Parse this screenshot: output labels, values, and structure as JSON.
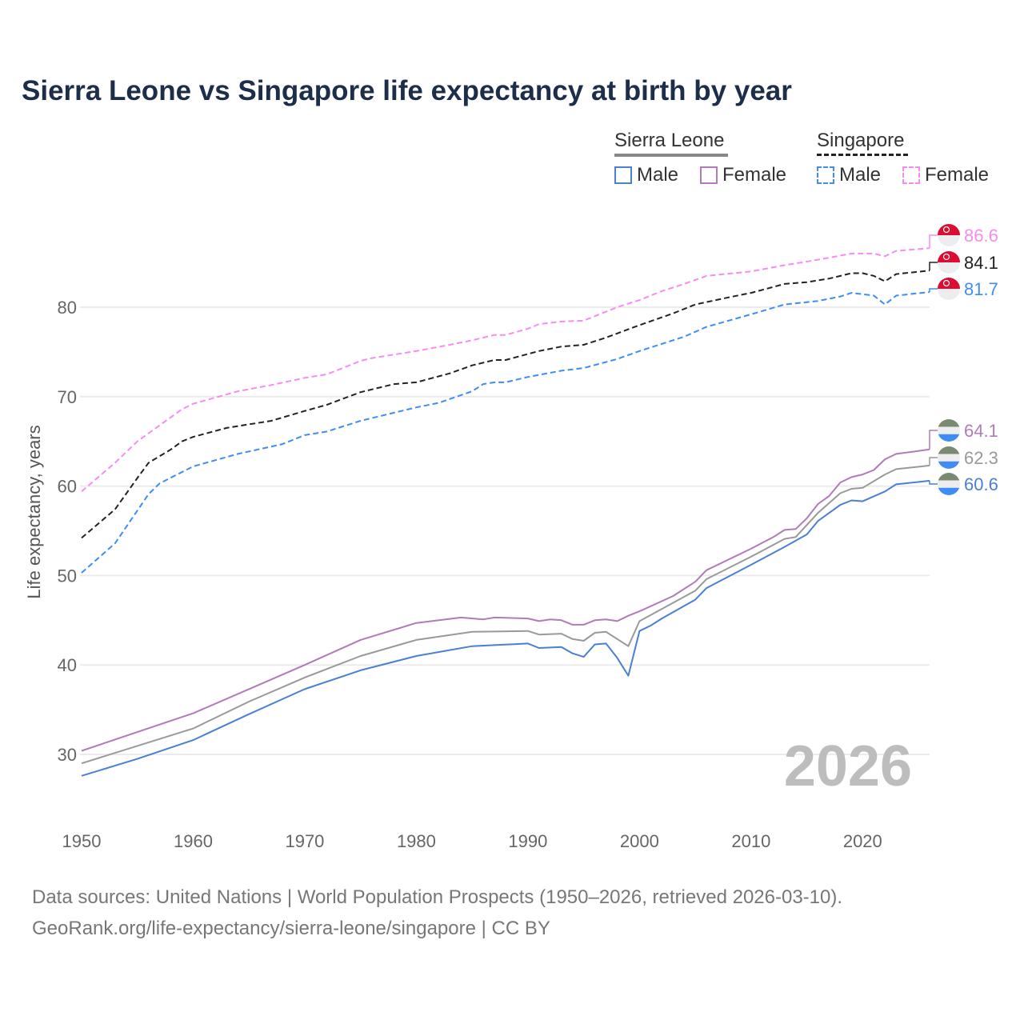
{
  "chart_data": {
    "type": "line",
    "title": "Sierra Leone vs Singapore life expectancy at birth by year",
    "xlabel": "",
    "ylabel": "Life expectancy, years",
    "xlim": [
      1950,
      2026
    ],
    "ylim": [
      25,
      90
    ],
    "x_ticks": [
      "1950",
      "1960",
      "1970",
      "1980",
      "1990",
      "2000",
      "2010",
      "2020"
    ],
    "y_ticks": [
      "30",
      "40",
      "50",
      "60",
      "70",
      "80"
    ],
    "grid": true,
    "watermark_year": "2026",
    "legend": {
      "groups": [
        {
          "name": "Sierra Leone",
          "items": [
            "Male",
            "Female"
          ]
        },
        {
          "name": "Singapore",
          "items": [
            "Male",
            "Female"
          ]
        }
      ],
      "placement": "top-right"
    },
    "series": [
      {
        "name": "Singapore Female",
        "country": "Singapore",
        "color": "#f78cf0",
        "dashed": true,
        "end_label": "86.6",
        "points": [
          [
            1950,
            59.4
          ],
          [
            1953,
            62.6
          ],
          [
            1955,
            65.0
          ],
          [
            1959,
            68.6
          ],
          [
            1960,
            69.2
          ],
          [
            1964,
            70.6
          ],
          [
            1967,
            71.3
          ],
          [
            1970,
            72.1
          ],
          [
            1972,
            72.5
          ],
          [
            1975,
            74.0
          ],
          [
            1976,
            74.3
          ],
          [
            1980,
            75.1
          ],
          [
            1983,
            75.8
          ],
          [
            1985,
            76.3
          ],
          [
            1987,
            76.9
          ],
          [
            1988,
            76.9
          ],
          [
            1990,
            77.6
          ],
          [
            1991,
            78.1
          ],
          [
            1993,
            78.4
          ],
          [
            1995,
            78.5
          ],
          [
            1998,
            80.0
          ],
          [
            2000,
            80.8
          ],
          [
            2002,
            81.8
          ],
          [
            2004,
            82.6
          ],
          [
            2006,
            83.5
          ],
          [
            2010,
            84.0
          ],
          [
            2013,
            84.7
          ],
          [
            2016,
            85.3
          ],
          [
            2019,
            86.0
          ],
          [
            2021,
            86.0
          ],
          [
            2022,
            85.7
          ],
          [
            2023,
            86.3
          ],
          [
            2026,
            86.6
          ]
        ]
      },
      {
        "name": "Singapore Total",
        "country": "Singapore",
        "color": "#222222",
        "dashed": true,
        "end_label": "84.1",
        "points": [
          [
            1950,
            54.2
          ],
          [
            1953,
            57.4
          ],
          [
            1955,
            60.9
          ],
          [
            1956,
            62.6
          ],
          [
            1958,
            64.1
          ],
          [
            1959,
            65.0
          ],
          [
            1960,
            65.5
          ],
          [
            1963,
            66.5
          ],
          [
            1967,
            67.3
          ],
          [
            1970,
            68.4
          ],
          [
            1972,
            69.1
          ],
          [
            1975,
            70.5
          ],
          [
            1978,
            71.4
          ],
          [
            1980,
            71.6
          ],
          [
            1983,
            72.6
          ],
          [
            1985,
            73.5
          ],
          [
            1987,
            74.1
          ],
          [
            1988,
            74.1
          ],
          [
            1991,
            75.1
          ],
          [
            1993,
            75.6
          ],
          [
            1995,
            75.8
          ],
          [
            1997,
            76.6
          ],
          [
            2000,
            78.0
          ],
          [
            2003,
            79.3
          ],
          [
            2005,
            80.3
          ],
          [
            2008,
            81.1
          ],
          [
            2010,
            81.6
          ],
          [
            2013,
            82.6
          ],
          [
            2015,
            82.8
          ],
          [
            2017,
            83.2
          ],
          [
            2019,
            83.8
          ],
          [
            2020,
            83.8
          ],
          [
            2021,
            83.5
          ],
          [
            2022,
            82.9
          ],
          [
            2023,
            83.7
          ],
          [
            2026,
            84.1
          ]
        ]
      },
      {
        "name": "Singapore Male",
        "country": "Singapore",
        "color": "#3f8cf5",
        "dashed": true,
        "end_label": "81.7",
        "points": [
          [
            1950,
            50.3
          ],
          [
            1953,
            53.6
          ],
          [
            1956,
            59.1
          ],
          [
            1957,
            60.3
          ],
          [
            1960,
            62.2
          ],
          [
            1964,
            63.6
          ],
          [
            1968,
            64.7
          ],
          [
            1970,
            65.7
          ],
          [
            1972,
            66.1
          ],
          [
            1975,
            67.3
          ],
          [
            1980,
            68.8
          ],
          [
            1982,
            69.3
          ],
          [
            1985,
            70.6
          ],
          [
            1986,
            71.4
          ],
          [
            1987,
            71.6
          ],
          [
            1988,
            71.6
          ],
          [
            1990,
            72.2
          ],
          [
            1993,
            72.9
          ],
          [
            1995,
            73.2
          ],
          [
            1998,
            74.2
          ],
          [
            2000,
            75.1
          ],
          [
            2004,
            76.7
          ],
          [
            2006,
            77.8
          ],
          [
            2010,
            79.2
          ],
          [
            2013,
            80.3
          ],
          [
            2016,
            80.7
          ],
          [
            2018,
            81.2
          ],
          [
            2019,
            81.6
          ],
          [
            2021,
            81.3
          ],
          [
            2022,
            80.3
          ],
          [
            2023,
            81.3
          ],
          [
            2026,
            81.7
          ]
        ]
      },
      {
        "name": "Sierra Leone Female",
        "country": "Sierra Leone",
        "color": "#b07bb8",
        "dashed": false,
        "end_label": "64.1",
        "points": [
          [
            1950,
            30.4
          ],
          [
            1960,
            34.6
          ],
          [
            1965,
            37.3
          ],
          [
            1970,
            40.0
          ],
          [
            1975,
            42.8
          ],
          [
            1980,
            44.7
          ],
          [
            1984,
            45.3
          ],
          [
            1986,
            45.1
          ],
          [
            1987,
            45.3
          ],
          [
            1990,
            45.2
          ],
          [
            1991,
            44.9
          ],
          [
            1992,
            45.1
          ],
          [
            1993,
            45.0
          ],
          [
            1994,
            44.5
          ],
          [
            1995,
            44.5
          ],
          [
            1996,
            45.0
          ],
          [
            1997,
            45.1
          ],
          [
            1998,
            44.9
          ],
          [
            1999,
            45.5
          ],
          [
            2000,
            46.0
          ],
          [
            2003,
            47.7
          ],
          [
            2005,
            49.3
          ],
          [
            2006,
            50.6
          ],
          [
            2010,
            53.0
          ],
          [
            2012,
            54.3
          ],
          [
            2013,
            55.1
          ],
          [
            2014,
            55.2
          ],
          [
            2015,
            56.4
          ],
          [
            2016,
            58.0
          ],
          [
            2017,
            58.9
          ],
          [
            2018,
            60.4
          ],
          [
            2019,
            61.0
          ],
          [
            2020,
            61.3
          ],
          [
            2021,
            61.8
          ],
          [
            2022,
            63.0
          ],
          [
            2023,
            63.6
          ],
          [
            2026,
            64.1
          ]
        ]
      },
      {
        "name": "Sierra Leone Total",
        "country": "Sierra Leone",
        "color": "#999999",
        "dashed": false,
        "end_label": "62.3",
        "points": [
          [
            1950,
            29.0
          ],
          [
            1960,
            32.9
          ],
          [
            1965,
            35.9
          ],
          [
            1970,
            38.6
          ],
          [
            1975,
            41.0
          ],
          [
            1980,
            42.8
          ],
          [
            1985,
            43.7
          ],
          [
            1990,
            43.8
          ],
          [
            1991,
            43.4
          ],
          [
            1993,
            43.5
          ],
          [
            1994,
            42.9
          ],
          [
            1995,
            42.7
          ],
          [
            1996,
            43.6
          ],
          [
            1997,
            43.7
          ],
          [
            1999,
            42.1
          ],
          [
            2000,
            44.9
          ],
          [
            2005,
            48.3
          ],
          [
            2006,
            49.6
          ],
          [
            2010,
            52.1
          ],
          [
            2013,
            54.1
          ],
          [
            2014,
            54.3
          ],
          [
            2016,
            57.0
          ],
          [
            2018,
            59.2
          ],
          [
            2019,
            59.7
          ],
          [
            2020,
            59.8
          ],
          [
            2022,
            61.3
          ],
          [
            2023,
            61.9
          ],
          [
            2026,
            62.3
          ]
        ]
      },
      {
        "name": "Sierra Leone Male",
        "country": "Sierra Leone",
        "color": "#4a7fd4",
        "dashed": false,
        "end_label": "60.6",
        "points": [
          [
            1950,
            27.6
          ],
          [
            1955,
            29.5
          ],
          [
            1960,
            31.6
          ],
          [
            1965,
            34.5
          ],
          [
            1970,
            37.3
          ],
          [
            1975,
            39.4
          ],
          [
            1980,
            41.0
          ],
          [
            1985,
            42.1
          ],
          [
            1990,
            42.4
          ],
          [
            1991,
            41.9
          ],
          [
            1993,
            42.0
          ],
          [
            1994,
            41.3
          ],
          [
            1995,
            40.9
          ],
          [
            1996,
            42.3
          ],
          [
            1997,
            42.4
          ],
          [
            1998,
            40.8
          ],
          [
            1999,
            38.8
          ],
          [
            2000,
            43.8
          ],
          [
            2001,
            44.4
          ],
          [
            2002,
            45.2
          ],
          [
            2005,
            47.3
          ],
          [
            2006,
            48.6
          ],
          [
            2010,
            51.2
          ],
          [
            2013,
            53.2
          ],
          [
            2015,
            54.6
          ],
          [
            2016,
            56.1
          ],
          [
            2018,
            57.9
          ],
          [
            2019,
            58.4
          ],
          [
            2020,
            58.3
          ],
          [
            2022,
            59.4
          ],
          [
            2023,
            60.2
          ],
          [
            2026,
            60.6
          ]
        ]
      }
    ]
  },
  "legend_colors": {
    "sl_male": "#4a7fd4",
    "sl_female": "#b07bb8",
    "sg_male": "#3f8cf5",
    "sg_female": "#f78cf0",
    "sl_group": "#888888",
    "sg_group": "#222222"
  },
  "footer": {
    "line1": "Data sources: United Nations | World Population Prospects (1950–2026, retrieved 2026-03-10).",
    "line2": "GeoRank.org/life-expectancy/sierra-leone/singapore | CC BY"
  }
}
